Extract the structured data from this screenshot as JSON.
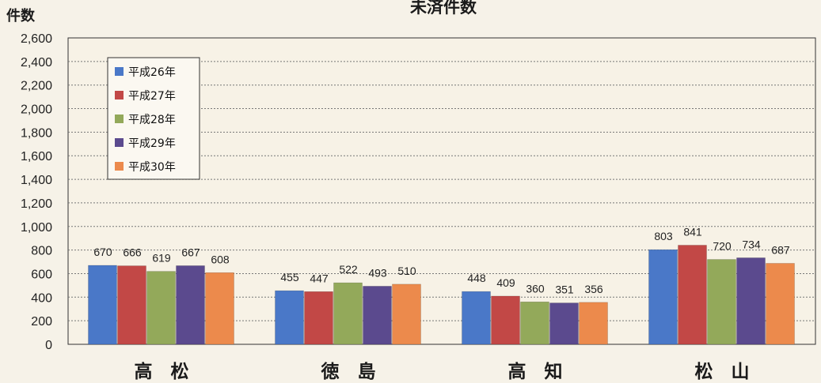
{
  "chart_data": {
    "type": "bar",
    "title": "未済件数",
    "ylabel": "件数",
    "xlabel": "",
    "ylim": [
      0,
      2600
    ],
    "ytick_step": 200,
    "grid": true,
    "legend_position": "top-left",
    "categories": [
      "高　松",
      "徳　島",
      "高　知",
      "松　山"
    ],
    "series": [
      {
        "name": "平成26年",
        "color": "#4a78c8",
        "values": [
          670,
          455,
          448,
          803
        ]
      },
      {
        "name": "平成27年",
        "color": "#c24846",
        "values": [
          666,
          447,
          409,
          841
        ]
      },
      {
        "name": "平成28年",
        "color": "#93a95a",
        "values": [
          619,
          522,
          360,
          720
        ]
      },
      {
        "name": "平成29年",
        "color": "#5b4a8e",
        "values": [
          667,
          493,
          351,
          734
        ]
      },
      {
        "name": "平成30年",
        "color": "#ec8a4c",
        "values": [
          608,
          510,
          356,
          687
        ]
      }
    ]
  }
}
